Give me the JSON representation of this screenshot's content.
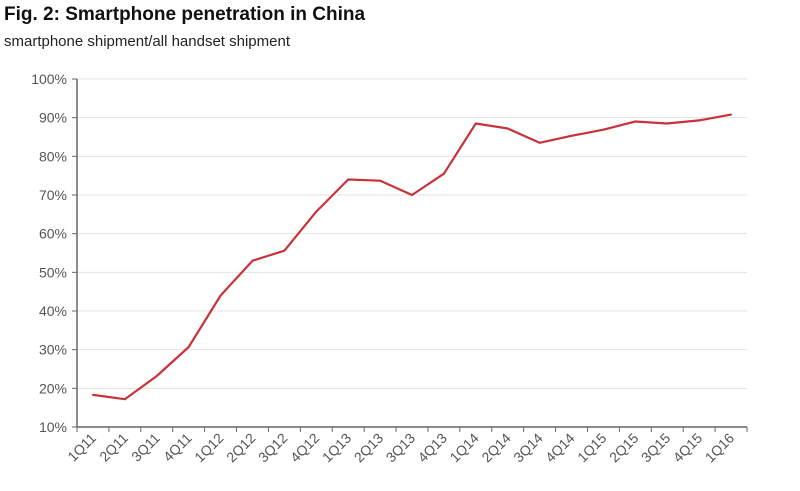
{
  "chart_data": {
    "type": "line",
    "title": "Fig. 2: Smartphone penetration in China",
    "subtitle": "smartphone shipment/all handset shipment",
    "xlabel": "",
    "ylabel": "",
    "ylim": [
      10,
      100
    ],
    "yticks": [
      "10%",
      "20%",
      "30%",
      "40%",
      "50%",
      "60%",
      "70%",
      "80%",
      "90%",
      "100%"
    ],
    "grid": true,
    "legend": "none",
    "categories": [
      "1Q11",
      "2Q11",
      "3Q11",
      "4Q11",
      "1Q12",
      "2Q12",
      "3Q12",
      "4Q12",
      "1Q13",
      "2Q13",
      "3Q13",
      "4Q13",
      "1Q14",
      "2Q14",
      "3Q14",
      "4Q14",
      "1Q15",
      "2Q15",
      "3Q15",
      "4Q15",
      "1Q16"
    ],
    "series": [
      {
        "name": "Smartphone penetration",
        "color": "#c8323a",
        "values": [
          18.3,
          17.2,
          23.2,
          30.7,
          44.0,
          53.0,
          55.6,
          65.7,
          74.0,
          73.7,
          70.0,
          75.5,
          88.5,
          87.2,
          83.5,
          85.3,
          86.9,
          89.0,
          88.5,
          89.3,
          90.8
        ]
      }
    ]
  }
}
